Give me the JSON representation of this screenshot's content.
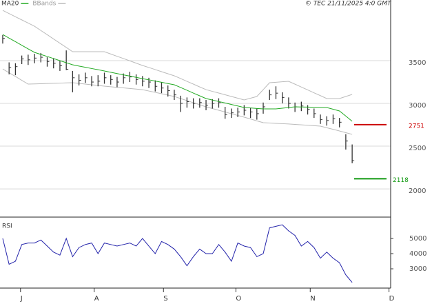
{
  "chart_data": [
    {
      "type": "ohlc",
      "credit": "© TEC 21/11/2025 4:0 GMT",
      "x": [
        0,
        1,
        2,
        3,
        4,
        5,
        6,
        7,
        8,
        9,
        10,
        11,
        12,
        13,
        14,
        15,
        16,
        17,
        18,
        19,
        20,
        21,
        22,
        23,
        24,
        25,
        26,
        27,
        28,
        29,
        30,
        31,
        32,
        33,
        34,
        35,
        36,
        37,
        38,
        39,
        40,
        41,
        42,
        43,
        44,
        45,
        46,
        47,
        48,
        49,
        50,
        51,
        52,
        53,
        54,
        55
      ],
      "high": [
        3800,
        3480,
        3470,
        3560,
        3570,
        3580,
        3590,
        3540,
        3530,
        3500,
        3620,
        3380,
        3340,
        3360,
        3320,
        3330,
        3360,
        3330,
        3310,
        3350,
        3370,
        3340,
        3320,
        3300,
        3270,
        3250,
        3210,
        3160,
        3090,
        3070,
        3060,
        3060,
        3040,
        3050,
        3060,
        2960,
        2940,
        2950,
        2980,
        2950,
        2940,
        3010,
        3160,
        3200,
        3130,
        3070,
        3010,
        3020,
        2980,
        2940,
        2870,
        2850,
        2870,
        2830,
        2640,
        2520
      ],
      "low": [
        3700,
        3340,
        3330,
        3460,
        3450,
        3470,
        3480,
        3430,
        3410,
        3380,
        3390,
        3130,
        3210,
        3240,
        3200,
        3200,
        3230,
        3220,
        3190,
        3230,
        3250,
        3220,
        3200,
        3180,
        3140,
        3120,
        3080,
        3040,
        2900,
        2950,
        2940,
        2950,
        2920,
        2940,
        2950,
        2820,
        2830,
        2840,
        2860,
        2830,
        2810,
        2880,
        3040,
        3050,
        3000,
        2940,
        2900,
        2910,
        2870,
        2830,
        2760,
        2740,
        2760,
        2720,
        2460,
        2300
      ],
      "close": [
        3760,
        3420,
        3430,
        3520,
        3510,
        3530,
        3540,
        3490,
        3470,
        3440,
        3400,
        3300,
        3270,
        3300,
        3250,
        3260,
        3300,
        3280,
        3250,
        3300,
        3310,
        3280,
        3260,
        3250,
        3200,
        3180,
        3150,
        3100,
        3000,
        3020,
        3000,
        3010,
        2980,
        3000,
        3010,
        2870,
        2890,
        2900,
        2920,
        2900,
        2880,
        2960,
        3100,
        3120,
        3070,
        3000,
        2960,
        2970,
        2930,
        2880,
        2810,
        2800,
        2820,
        2780,
        2560,
        2330
      ],
      "series": [
        {
          "name": "MA20",
          "color": "#22aa22",
          "values": [
            3806,
            3764,
            3722,
            3680,
            3638,
            3597,
            3573,
            3549,
            3525,
            3500,
            3476,
            3452,
            3437,
            3423,
            3408,
            3394,
            3379,
            3364,
            3349,
            3334,
            3320,
            3305,
            3290,
            3276,
            3261,
            3247,
            3232,
            3218,
            3186,
            3154,
            3121,
            3089,
            3057,
            3040,
            3022,
            3005,
            2987,
            2970,
            2952,
            2947,
            2941,
            2936,
            2936,
            2936,
            2944,
            2952,
            2960,
            2958,
            2957,
            2955,
            2953,
            2952,
            2932,
            2912,
            2852,
            2791
          ]
        },
        {
          "name": "BBands",
          "color": "#bbbbbb",
          "upper": [
            4088,
            4051,
            4014,
            3977,
            3940,
            3903,
            3853,
            3804,
            3754,
            3704,
            3655,
            3605,
            3605,
            3605,
            3605,
            3605,
            3605,
            3578,
            3551,
            3525,
            3498,
            3471,
            3444,
            3420,
            3396,
            3371,
            3347,
            3323,
            3291,
            3258,
            3226,
            3193,
            3161,
            3141,
            3121,
            3101,
            3081,
            3061,
            3041,
            3061,
            3081,
            3161,
            3242,
            3247,
            3253,
            3258,
            3225,
            3191,
            3158,
            3124,
            3091,
            3057,
            3057,
            3057,
            3081,
            3105
          ],
          "lower": [
            3403,
            3359,
            3315,
            3270,
            3226,
            3228,
            3230,
            3233,
            3235,
            3237,
            3240,
            3242,
            3234,
            3226,
            3218,
            3210,
            3202,
            3195,
            3188,
            3182,
            3175,
            3168,
            3161,
            3145,
            3129,
            3113,
            3097,
            3081,
            3057,
            3033,
            3008,
            2984,
            2960,
            2940,
            2920,
            2900,
            2879,
            2859,
            2839,
            2818,
            2796,
            2775,
            2771,
            2767,
            2763,
            2759,
            2754,
            2749,
            2744,
            2739,
            2734,
            2715,
            2697,
            2678,
            2658,
            2638
          ]
        }
      ],
      "levels": [
        {
          "value": 2751,
          "color": "#cc0000"
        },
        {
          "value": 2118,
          "color": "#119911"
        }
      ],
      "xlim": [
        -0.43,
        61.06
      ],
      "ylim": [
        1670,
        4113
      ],
      "yticks": [
        2000,
        2500,
        3000,
        3500
      ],
      "grid": true
    },
    {
      "type": "line",
      "title": "RSI",
      "color": "#2222aa",
      "values": [
        50,
        33,
        35,
        46,
        47,
        47,
        49,
        45,
        41,
        39,
        50,
        38,
        44,
        46,
        47,
        40,
        47,
        46,
        45,
        46,
        47,
        45,
        50,
        45,
        40,
        48,
        46,
        43,
        38,
        32,
        38,
        43,
        40,
        40,
        46,
        41,
        35,
        47,
        45,
        44,
        38,
        40,
        57,
        58,
        59,
        55,
        52,
        45,
        48,
        44,
        37,
        41,
        37,
        34,
        26,
        21
      ],
      "ylim": [
        17.3,
        60.9
      ],
      "yticks": [
        {
          "value": 50,
          "label": "5000"
        },
        {
          "value": 40,
          "label": "4000"
        },
        {
          "value": 30,
          "label": "3000"
        }
      ],
      "xticks": [
        {
          "value": 2.8,
          "label": "J"
        },
        {
          "value": 14.4,
          "label": "A"
        },
        {
          "value": 25.3,
          "label": "S"
        },
        {
          "value": 36.7,
          "label": "O"
        },
        {
          "value": 48.4,
          "label": "N"
        },
        {
          "value": 60.8,
          "label": "D"
        }
      ]
    }
  ]
}
